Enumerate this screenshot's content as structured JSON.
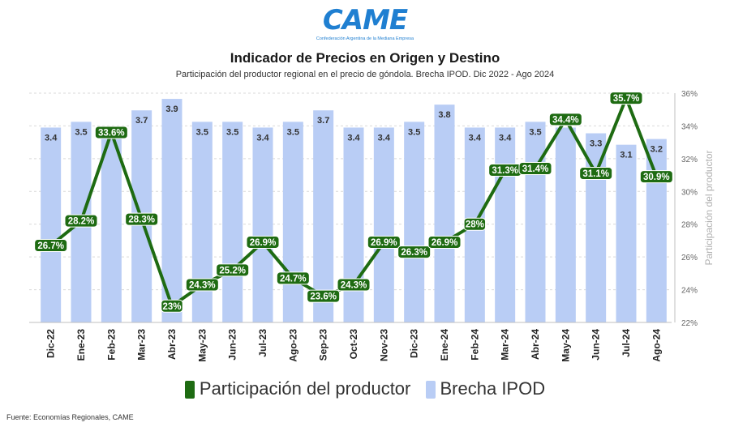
{
  "logo": {
    "name": "CAME",
    "tagline": "Confederación Argentina de la Mediana Empresa"
  },
  "title": "Indicador de Precios en Origen y Destino",
  "subtitle": "Participación del productor regional en el precio de góndola. Brecha IPOD. Dic 2022 - Ago 2024",
  "source": "Fuente: Economías Regionales, CAME",
  "colors": {
    "bar": "#b9cdf5",
    "line": "#1e6b12",
    "logo": "#1f7fd1"
  },
  "chart_data": {
    "type": "bar",
    "categories": [
      "Dic-22",
      "Ene-23",
      "Feb-23",
      "Mar-23",
      "Abr-23",
      "May-23",
      "Jun-23",
      "Jul-23",
      "Ago-23",
      "Sep-23",
      "Oct-23",
      "Nov-23",
      "Dic-23",
      "Ene-24",
      "Feb-24",
      "Mar-24",
      "Abr-24",
      "May-24",
      "Jun-24",
      "Jul-24",
      "Ago-24"
    ],
    "series": [
      {
        "name": "Brecha IPOD",
        "type": "bar",
        "values": [
          3.4,
          3.5,
          3.3,
          3.7,
          3.9,
          3.5,
          3.5,
          3.4,
          3.5,
          3.7,
          3.4,
          3.4,
          3.5,
          3.8,
          3.4,
          3.4,
          3.5,
          3.4,
          3.3,
          3.1,
          3.2
        ],
        "labels": [
          "3.4",
          "3.5",
          "",
          "3.7",
          "3.9",
          "3.5",
          "3.5",
          "3.4",
          "3.5",
          "3.7",
          "3.4",
          "3.4",
          "3.5",
          "3.8",
          "3.4",
          "3.4",
          "3.5",
          "",
          "3.3",
          "3.1",
          "3.2"
        ]
      },
      {
        "name": "Participación del productor",
        "type": "line",
        "values": [
          26.7,
          28.2,
          33.6,
          28.3,
          23.0,
          24.3,
          25.2,
          26.9,
          24.7,
          23.6,
          24.3,
          26.9,
          26.3,
          26.9,
          28.0,
          31.3,
          31.4,
          34.4,
          31.1,
          35.7,
          30.9
        ],
        "labels": [
          "26.7%",
          "28.2%",
          "33.6%",
          "28.3%",
          "23%",
          "24.3%",
          "25.2%",
          "26.9%",
          "24.7%",
          "23.6%",
          "24.3%",
          "26.9%",
          "26.3%",
          "26.9%",
          "28%",
          "31.3%",
          "31.4%",
          "34.4%",
          "31.1%",
          "35.7%",
          "30.9%"
        ]
      }
    ],
    "y_right": {
      "label": "Participación del productor",
      "range": [
        22,
        36
      ],
      "ticks": [
        "22%",
        "24%",
        "26%",
        "28%",
        "30%",
        "32%",
        "34%",
        "36%"
      ],
      "tick_values": [
        22,
        24,
        26,
        28,
        30,
        32,
        34,
        36
      ]
    },
    "bar_axis_range": [
      0,
      4.0
    ],
    "grid": true,
    "legend_position": "bottom"
  }
}
